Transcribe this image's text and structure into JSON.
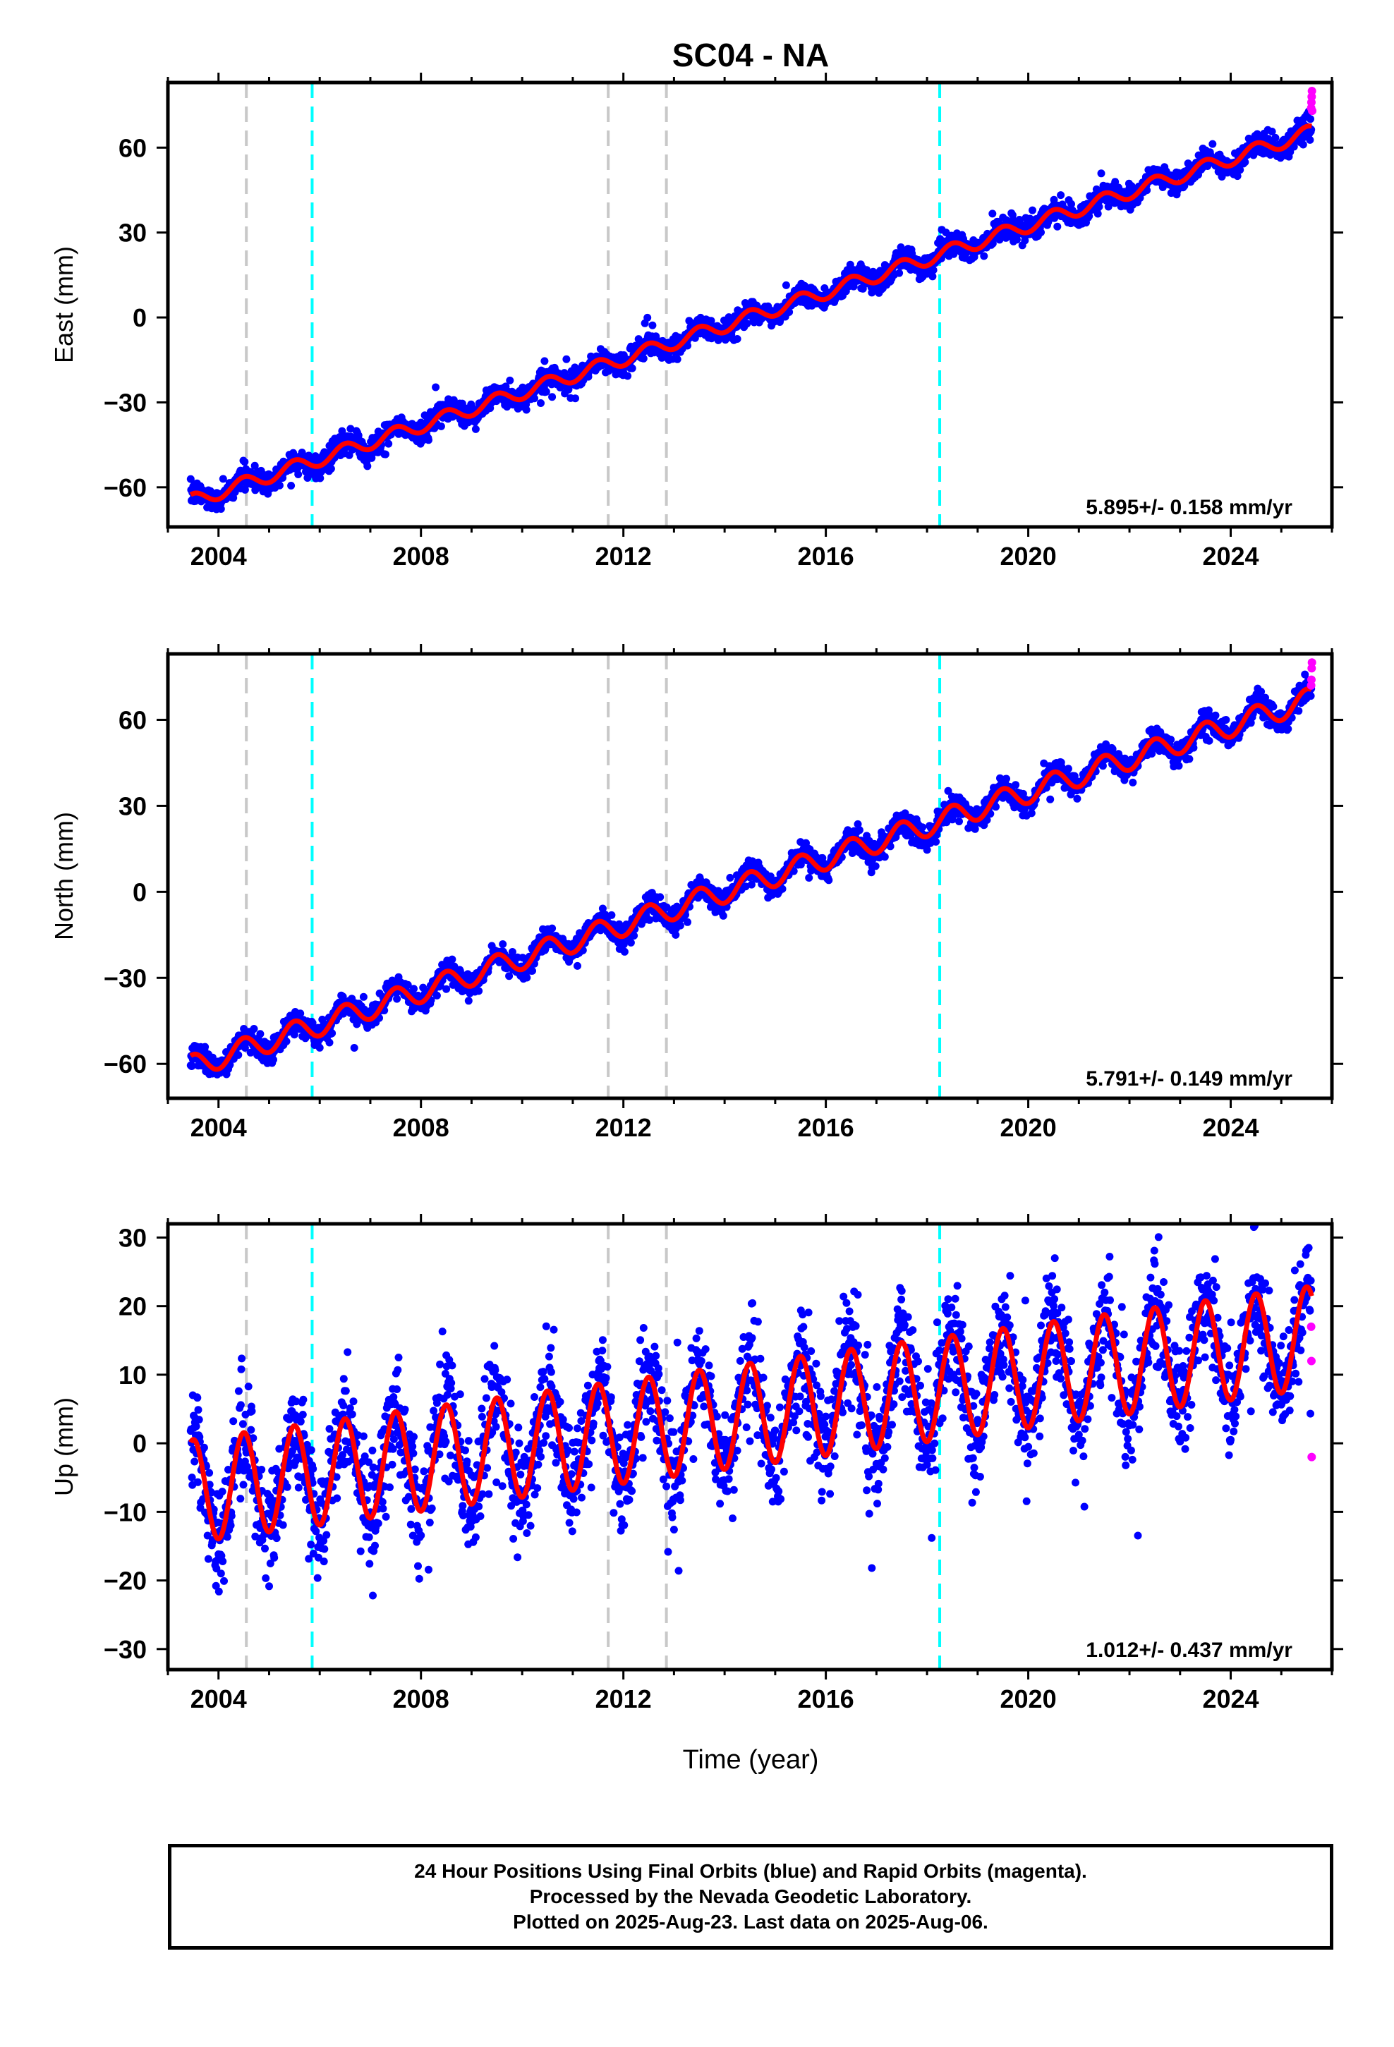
{
  "title": "SC04 - NA",
  "xlabel": "Time (year)",
  "footer": {
    "line1": "24 Hour Positions Using Final Orbits (blue) and Rapid Orbits (magenta).",
    "line2": "Processed by the Nevada Geodetic Laboratory.",
    "line3": "Plotted on 2025-Aug-23. Last data on 2025-Aug-06."
  },
  "colors": {
    "final_orbits": "#0000ff",
    "rapid_orbits": "#ff00ff",
    "model_fit": "#ff0000",
    "equipment_change": "#c8c8c8",
    "earthquake": "#00ffff"
  },
  "chart_data": [
    {
      "type": "scatter",
      "component": "east",
      "ylabel": "East (mm)",
      "rate_label": "5.895+/- 0.158 mm/yr",
      "xlim": [
        2003.0,
        2026.0
      ],
      "ylim": [
        -74,
        83
      ],
      "xticks": [
        2004,
        2008,
        2012,
        2016,
        2020,
        2024
      ],
      "yticks": [
        -60,
        -30,
        0,
        30,
        60
      ],
      "start_year": 2003.45,
      "end_year": 2025.6,
      "model": {
        "offset_at_start": -65,
        "rate_mm_per_yr": 5.895,
        "seasonal_amplitude": 2.5,
        "scatter": 2.0
      },
      "rapid_values": [
        74,
        76,
        78,
        80,
        73
      ],
      "vlines_gray": [
        2004.55,
        2011.7,
        2012.85
      ],
      "vlines_cyan": [
        2005.85,
        2018.25
      ]
    },
    {
      "type": "scatter",
      "component": "north",
      "ylabel": "North (mm)",
      "rate_label": "5.791+/- 0.149 mm/yr",
      "xlim": [
        2003.0,
        2026.0
      ],
      "ylim": [
        -72,
        83
      ],
      "xticks": [
        2004,
        2008,
        2012,
        2016,
        2020,
        2024
      ],
      "yticks": [
        -60,
        -30,
        0,
        30,
        60
      ],
      "start_year": 2003.45,
      "end_year": 2025.6,
      "model": {
        "offset_at_start": -61,
        "rate_mm_per_yr": 5.791,
        "seasonal_amplitude": 4.0,
        "scatter": 2.0
      },
      "rapid_values": [
        72,
        74,
        78,
        80
      ],
      "vlines_gray": [
        2004.55,
        2011.7,
        2012.85
      ],
      "vlines_cyan": [
        2005.85,
        2018.25
      ]
    },
    {
      "type": "scatter",
      "component": "up",
      "ylabel": "Up (mm)",
      "rate_label": "1.012+/- 0.437 mm/yr",
      "xlim": [
        2003.0,
        2026.0
      ],
      "ylim": [
        -33,
        32
      ],
      "xticks": [
        2004,
        2008,
        2012,
        2016,
        2020,
        2024
      ],
      "yticks": [
        -30,
        -20,
        -10,
        0,
        10,
        20,
        30
      ],
      "start_year": 2003.45,
      "end_year": 2025.6,
      "model": {
        "offset_at_start": -7,
        "rate_mm_per_yr": 1.012,
        "seasonal_amplitude": 7.5,
        "scatter": 4.0
      },
      "rapid_values": [
        17,
        12,
        -2
      ],
      "vlines_gray": [
        2004.55,
        2011.7,
        2012.85
      ],
      "vlines_cyan": [
        2005.85,
        2018.25
      ]
    }
  ]
}
